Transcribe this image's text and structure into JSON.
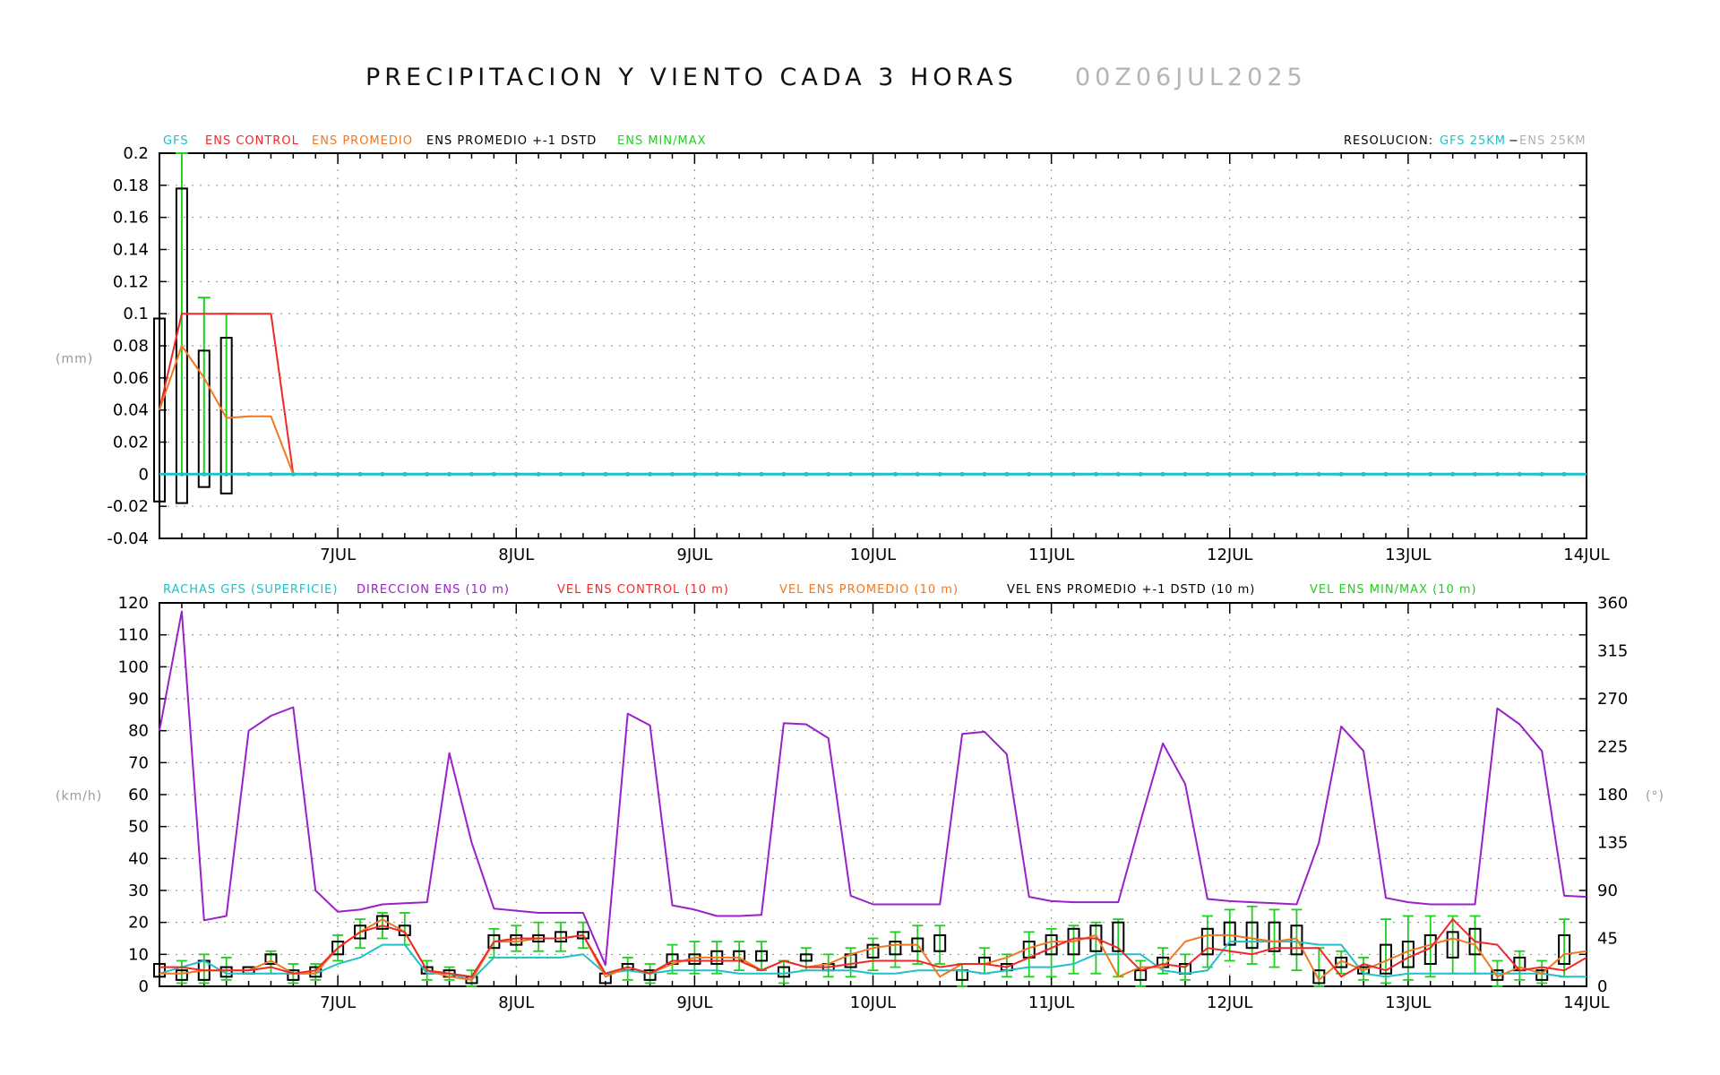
{
  "title": "PRECIPITACION Y VIENTO CADA 3 HORAS",
  "run_date": "00Z06JUL2025",
  "colors": {
    "gfs": "#20c0c8",
    "ens_control": "#f02828",
    "ens_mean": "#f07820",
    "ens_std": "#000000",
    "ens_minmax": "#20d020",
    "direction": "#9a20c8",
    "resolution_ens": "#b0b0b0"
  },
  "chart_data": [
    {
      "type": "line",
      "panel": "precipitation",
      "legend": {
        "gfs": "GFS",
        "ens_control": "ENS CONTROL",
        "ens_mean": "ENS PROMEDIO",
        "ens_std": "ENS PROMEDIO +-1 DSTD",
        "ens_minmax": "ENS MIN/MAX",
        "resolution_label": "RESOLUCION:",
        "resolution_gfs": "GFS 25KM",
        "resolution_ens": "ENS 25KM"
      },
      "ylabel": "(mm)",
      "ylim": [
        -0.04,
        0.2
      ],
      "yticks": [
        "0.2",
        "0.18",
        "0.16",
        "0.14",
        "0.12",
        "0.1",
        "0.08",
        "0.06",
        "0.04",
        "0.02",
        "0",
        "-0.02",
        "-0.04"
      ],
      "xlim_hours": [
        0,
        192
      ],
      "xticks": [
        "7JUL",
        "8JUL",
        "9JUL",
        "10JUL",
        "11JUL",
        "12JUL",
        "13JUL",
        "14JUL"
      ],
      "grid": true,
      "gfs_value": 0,
      "series": [
        {
          "name": "ENS CONTROL",
          "x": [
            0,
            3,
            6,
            9,
            12,
            15,
            18
          ],
          "y": [
            0.04,
            0.1,
            0.1,
            0.1,
            0.1,
            0.1,
            0
          ]
        },
        {
          "name": "ENS PROMEDIO",
          "x": [
            0,
            3,
            6,
            9,
            12,
            15,
            18
          ],
          "y": [
            0.04,
            0.08,
            0.06,
            0.035,
            0.036,
            0.036,
            0
          ]
        }
      ],
      "boxes": [
        {
          "x": 0,
          "low": -0.017,
          "high": 0.097
        },
        {
          "x": 3,
          "low": -0.018,
          "high": 0.178
        },
        {
          "x": 6,
          "low": -0.008,
          "high": 0.077
        },
        {
          "x": 9,
          "low": -0.012,
          "high": 0.085
        }
      ],
      "minmax": [
        {
          "x": 3,
          "min": 0,
          "max": 0.2
        },
        {
          "x": 6,
          "min": 0,
          "max": 0.11
        },
        {
          "x": 9,
          "min": 0,
          "max": 0.1
        }
      ]
    },
    {
      "type": "line",
      "panel": "wind",
      "legend": {
        "gust": "RACHAS GFS (SUPERFICIE)",
        "direction": "DIRECCION ENS (10 m)",
        "control": "VEL ENS CONTROL (10 m)",
        "mean": "VEL ENS PROMEDIO (10 m)",
        "std": "VEL ENS PROMEDIO +-1 DSTD (10 m)",
        "minmax": "VEL ENS MIN/MAX (10 m)"
      },
      "ylabel": "(km/h)",
      "y2label": "(°)",
      "ylim": [
        0,
        120
      ],
      "y2lim": [
        0,
        360
      ],
      "yticks": [
        "120",
        "110",
        "100",
        "90",
        "80",
        "70",
        "60",
        "50",
        "40",
        "30",
        "20",
        "10",
        "0"
      ],
      "y2ticks": [
        "360",
        "315",
        "270",
        "225",
        "180",
        "135",
        "90",
        "45",
        "0"
      ],
      "xlim_hours": [
        0,
        192
      ],
      "xticks": [
        "7JUL",
        "8JUL",
        "9JUL",
        "10JUL",
        "11JUL",
        "12JUL",
        "13JUL",
        "14JUL"
      ],
      "grid": true,
      "x_hours": [
        0,
        3,
        6,
        9,
        12,
        15,
        18,
        21,
        24,
        27,
        30,
        33,
        36,
        39,
        42,
        45,
        48,
        51,
        54,
        57,
        60,
        63,
        66,
        69,
        72,
        75,
        78,
        81,
        84,
        87,
        90,
        93,
        96,
        99,
        102,
        105,
        108,
        111,
        114,
        117,
        120,
        123,
        126,
        129,
        132,
        135,
        138,
        141,
        144,
        147,
        150,
        153,
        156,
        159,
        162,
        165,
        168,
        171,
        174,
        177,
        180,
        183,
        186,
        189,
        192
      ],
      "direction_deg": [
        240,
        352,
        62,
        66,
        240,
        254,
        262,
        90,
        70,
        72,
        77,
        78,
        79,
        219,
        135,
        73,
        71,
        69,
        69,
        69,
        20,
        256,
        245,
        76,
        72,
        66,
        66,
        67,
        247,
        246,
        233,
        85,
        77,
        77,
        77,
        77,
        237,
        239,
        218,
        84,
        80,
        79,
        79,
        79,
        155,
        228,
        190,
        82,
        80,
        79,
        78,
        77,
        135,
        244,
        221,
        83,
        79,
        77,
        77,
        77,
        261,
        246,
        221,
        85,
        84
      ],
      "gust": [
        4,
        6,
        8,
        4,
        4,
        4,
        4,
        4,
        7,
        9,
        13,
        13,
        4,
        4,
        2,
        9,
        9,
        9,
        9,
        10,
        4,
        5,
        4,
        5,
        5,
        5,
        4,
        4,
        4,
        5,
        5,
        5,
        4,
        4,
        5,
        5,
        5,
        4,
        5,
        6,
        6,
        7,
        10,
        10,
        10,
        5,
        4,
        5,
        14,
        14,
        14,
        14,
        13,
        13,
        4,
        3,
        4,
        4,
        4,
        4,
        4,
        4,
        4,
        3,
        3
      ],
      "control": [
        6,
        6,
        5,
        5,
        5,
        6,
        4,
        5,
        12,
        17,
        19,
        17,
        5,
        4,
        3,
        14,
        15,
        15,
        15,
        16,
        4,
        6,
        4,
        8,
        8,
        8,
        8,
        5,
        8,
        6,
        6,
        7,
        8,
        8,
        8,
        6,
        7,
        7,
        6,
        9,
        12,
        15,
        15,
        12,
        5,
        7,
        6,
        12,
        11,
        10,
        12,
        12,
        12,
        3,
        7,
        5,
        9,
        12,
        21,
        14,
        13,
        5,
        6,
        5,
        9
      ],
      "mean": [
        4,
        4,
        5,
        5,
        5,
        8,
        4,
        4,
        12,
        17,
        21,
        17,
        5,
        3,
        2,
        14,
        14,
        15,
        15,
        16,
        3,
        6,
        4,
        7,
        9,
        9,
        9,
        5,
        8,
        6,
        7,
        10,
        12,
        13,
        13,
        3,
        7,
        7,
        9,
        12,
        14,
        14,
        16,
        3,
        6,
        6,
        14,
        16,
        16,
        15,
        14,
        15,
        2,
        8,
        5,
        8,
        11,
        13,
        15,
        13,
        3,
        6,
        4,
        10,
        11
      ],
      "std_boxes": [
        {
          "x": 0,
          "low": 3,
          "high": 7
        },
        {
          "x": 3,
          "low": 2,
          "high": 5
        },
        {
          "x": 6,
          "low": 2,
          "high": 8
        },
        {
          "x": 9,
          "low": 3,
          "high": 6
        },
        {
          "x": 12,
          "low": 4,
          "high": 6
        },
        {
          "x": 15,
          "low": 7,
          "high": 10
        },
        {
          "x": 18,
          "low": 2,
          "high": 5
        },
        {
          "x": 21,
          "low": 3,
          "high": 6
        },
        {
          "x": 24,
          "low": 10,
          "high": 14
        },
        {
          "x": 27,
          "low": 15,
          "high": 19
        },
        {
          "x": 30,
          "low": 18,
          "high": 22
        },
        {
          "x": 33,
          "low": 16,
          "high": 19
        },
        {
          "x": 36,
          "low": 4,
          "high": 6
        },
        {
          "x": 39,
          "low": 3,
          "high": 5
        },
        {
          "x": 42,
          "low": 1,
          "high": 3
        },
        {
          "x": 45,
          "low": 12,
          "high": 16
        },
        {
          "x": 48,
          "low": 13,
          "high": 16
        },
        {
          "x": 51,
          "low": 14,
          "high": 16
        },
        {
          "x": 54,
          "low": 14,
          "high": 17
        },
        {
          "x": 57,
          "low": 15,
          "high": 17
        },
        {
          "x": 60,
          "low": 1,
          "high": 4
        },
        {
          "x": 63,
          "low": 5,
          "high": 7
        },
        {
          "x": 66,
          "low": 2,
          "high": 5
        },
        {
          "x": 69,
          "low": 7,
          "high": 10
        },
        {
          "x": 72,
          "low": 7,
          "high": 10
        },
        {
          "x": 75,
          "low": 7,
          "high": 11
        },
        {
          "x": 78,
          "low": 8,
          "high": 11
        },
        {
          "x": 81,
          "low": 8,
          "high": 11
        },
        {
          "x": 84,
          "low": 3,
          "high": 6
        },
        {
          "x": 87,
          "low": 8,
          "high": 10
        },
        {
          "x": 90,
          "low": 5,
          "high": 7
        },
        {
          "x": 93,
          "low": 6,
          "high": 10
        },
        {
          "x": 96,
          "low": 9,
          "high": 13
        },
        {
          "x": 99,
          "low": 10,
          "high": 14
        },
        {
          "x": 102,
          "low": 11,
          "high": 15
        },
        {
          "x": 105,
          "low": 11,
          "high": 16
        },
        {
          "x": 108,
          "low": 2,
          "high": 5
        },
        {
          "x": 111,
          "low": 7,
          "high": 9
        },
        {
          "x": 114,
          "low": 5,
          "high": 7
        },
        {
          "x": 117,
          "low": 9,
          "high": 14
        },
        {
          "x": 120,
          "low": 10,
          "high": 16
        },
        {
          "x": 123,
          "low": 10,
          "high": 18
        },
        {
          "x": 126,
          "low": 11,
          "high": 19
        },
        {
          "x": 129,
          "low": 11,
          "high": 20
        },
        {
          "x": 132,
          "low": 2,
          "high": 5
        },
        {
          "x": 135,
          "low": 6,
          "high": 9
        },
        {
          "x": 138,
          "low": 4,
          "high": 7
        },
        {
          "x": 141,
          "low": 10,
          "high": 18
        },
        {
          "x": 144,
          "low": 13,
          "high": 20
        },
        {
          "x": 147,
          "low": 12,
          "high": 20
        },
        {
          "x": 150,
          "low": 11,
          "high": 20
        },
        {
          "x": 153,
          "low": 10,
          "high": 19
        },
        {
          "x": 156,
          "low": 1,
          "high": 5
        },
        {
          "x": 159,
          "low": 6,
          "high": 9
        },
        {
          "x": 162,
          "low": 4,
          "high": 6
        },
        {
          "x": 165,
          "low": 4,
          "high": 13
        },
        {
          "x": 168,
          "low": 6,
          "high": 14
        },
        {
          "x": 171,
          "low": 7,
          "high": 16
        },
        {
          "x": 174,
          "low": 9,
          "high": 17
        },
        {
          "x": 177,
          "low": 10,
          "high": 18
        },
        {
          "x": 180,
          "low": 2,
          "high": 5
        },
        {
          "x": 183,
          "low": 5,
          "high": 9
        },
        {
          "x": 186,
          "low": 2,
          "high": 5
        },
        {
          "x": 189,
          "low": 7,
          "high": 16
        }
      ],
      "minmax_bars": [
        {
          "x": 3,
          "min": 1,
          "max": 8
        },
        {
          "x": 6,
          "min": 1,
          "max": 10
        },
        {
          "x": 9,
          "min": 2,
          "max": 9
        },
        {
          "x": 15,
          "min": 4,
          "max": 11
        },
        {
          "x": 18,
          "min": 1,
          "max": 7
        },
        {
          "x": 21,
          "min": 2,
          "max": 7
        },
        {
          "x": 24,
          "min": 8,
          "max": 16
        },
        {
          "x": 27,
          "min": 12,
          "max": 21
        },
        {
          "x": 30,
          "min": 15,
          "max": 23
        },
        {
          "x": 33,
          "min": 13,
          "max": 23
        },
        {
          "x": 36,
          "min": 2,
          "max": 8
        },
        {
          "x": 39,
          "min": 2,
          "max": 6
        },
        {
          "x": 42,
          "min": 0,
          "max": 5
        },
        {
          "x": 45,
          "min": 9,
          "max": 18
        },
        {
          "x": 48,
          "min": 11,
          "max": 19
        },
        {
          "x": 51,
          "min": 11,
          "max": 20
        },
        {
          "x": 54,
          "min": 11,
          "max": 20
        },
        {
          "x": 57,
          "min": 12,
          "max": 20
        },
        {
          "x": 63,
          "min": 2,
          "max": 9
        },
        {
          "x": 66,
          "min": 1,
          "max": 7
        },
        {
          "x": 69,
          "min": 4,
          "max": 13
        },
        {
          "x": 72,
          "min": 4,
          "max": 14
        },
        {
          "x": 75,
          "min": 4,
          "max": 14
        },
        {
          "x": 78,
          "min": 5,
          "max": 14
        },
        {
          "x": 81,
          "min": 5,
          "max": 14
        },
        {
          "x": 84,
          "min": 1,
          "max": 8
        },
        {
          "x": 87,
          "min": 5,
          "max": 12
        },
        {
          "x": 90,
          "min": 3,
          "max": 10
        },
        {
          "x": 93,
          "min": 3,
          "max": 12
        },
        {
          "x": 96,
          "min": 5,
          "max": 15
        },
        {
          "x": 99,
          "min": 6,
          "max": 17
        },
        {
          "x": 102,
          "min": 7,
          "max": 19
        },
        {
          "x": 105,
          "min": 7,
          "max": 19
        },
        {
          "x": 108,
          "min": 0,
          "max": 7
        },
        {
          "x": 111,
          "min": 4,
          "max": 12
        },
        {
          "x": 114,
          "min": 3,
          "max": 10
        },
        {
          "x": 117,
          "min": 3,
          "max": 17
        },
        {
          "x": 120,
          "min": 3,
          "max": 18
        },
        {
          "x": 123,
          "min": 4,
          "max": 19
        },
        {
          "x": 126,
          "min": 4,
          "max": 20
        },
        {
          "x": 129,
          "min": 3,
          "max": 21
        },
        {
          "x": 132,
          "min": 0,
          "max": 8
        },
        {
          "x": 135,
          "min": 4,
          "max": 12
        },
        {
          "x": 138,
          "min": 2,
          "max": 10
        },
        {
          "x": 141,
          "min": 6,
          "max": 22
        },
        {
          "x": 144,
          "min": 8,
          "max": 24
        },
        {
          "x": 147,
          "min": 7,
          "max": 25
        },
        {
          "x": 150,
          "min": 6,
          "max": 24
        },
        {
          "x": 153,
          "min": 5,
          "max": 24
        },
        {
          "x": 156,
          "min": 0,
          "max": 12
        },
        {
          "x": 159,
          "min": 4,
          "max": 11
        },
        {
          "x": 162,
          "min": 2,
          "max": 9
        },
        {
          "x": 165,
          "min": 1,
          "max": 21
        },
        {
          "x": 168,
          "min": 2,
          "max": 22
        },
        {
          "x": 171,
          "min": 3,
          "max": 22
        },
        {
          "x": 174,
          "min": 4,
          "max": 22
        },
        {
          "x": 177,
          "min": 4,
          "max": 22
        },
        {
          "x": 180,
          "min": 0,
          "max": 8
        },
        {
          "x": 183,
          "min": 2,
          "max": 11
        },
        {
          "x": 186,
          "min": 1,
          "max": 8
        },
        {
          "x": 189,
          "min": 3,
          "max": 21
        }
      ]
    }
  ]
}
